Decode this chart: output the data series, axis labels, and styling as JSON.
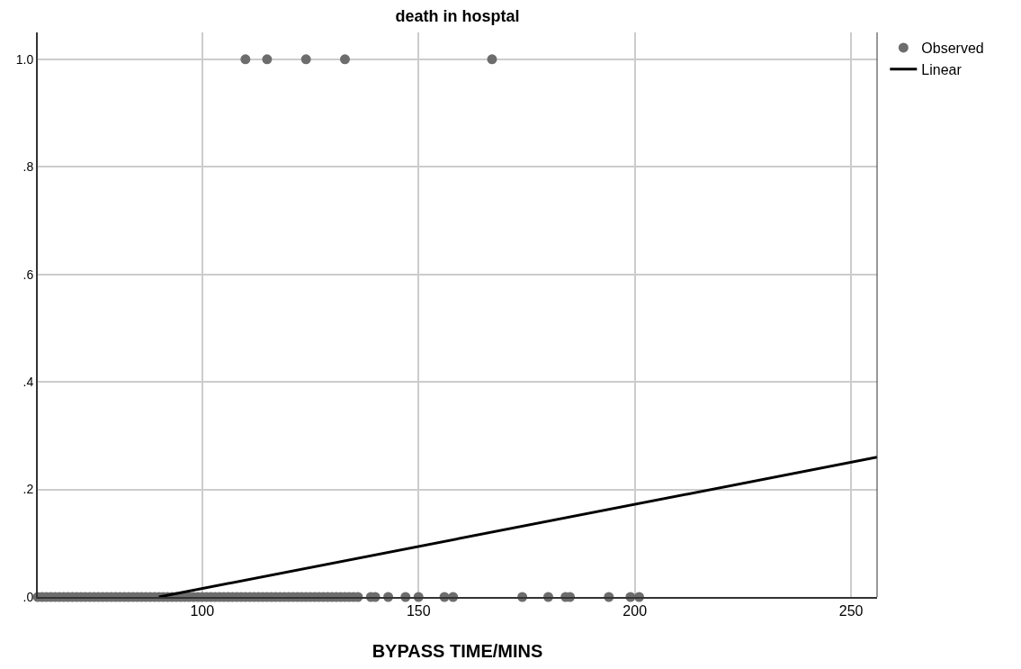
{
  "chart_data": {
    "type": "scatter",
    "title": "death in hosptal",
    "xlabel": "BYPASS TIME/MINS",
    "xlim": [
      62,
      256
    ],
    "xticks": [
      100,
      150,
      200,
      250
    ],
    "ylim": [
      0,
      1.05
    ],
    "yticks": [
      {
        "value": 0,
        "label": ".0"
      },
      {
        "value": 0.2,
        "label": ".2"
      },
      {
        "value": 0.4,
        "label": ".4"
      },
      {
        "value": 0.6,
        "label": ".6"
      },
      {
        "value": 0.8,
        "label": ".8"
      },
      {
        "value": 1,
        "label": "1.0"
      }
    ],
    "grid": true,
    "legend": "top right",
    "marker": "circle",
    "series": [
      {
        "name": "Observed",
        "color": "#6d6d6d",
        "x": [
          62,
          63,
          64,
          65,
          66,
          67,
          68,
          69,
          70,
          71,
          72,
          73,
          74,
          75,
          76,
          77,
          78,
          79,
          80,
          81,
          82,
          83,
          84,
          85,
          86,
          87,
          88,
          89,
          90,
          91,
          92,
          93,
          94,
          95,
          96,
          97,
          98,
          99,
          100,
          101,
          102,
          103,
          104,
          105,
          106,
          107,
          108,
          109,
          110,
          111,
          112,
          113,
          114,
          115,
          116,
          117,
          118,
          119,
          120,
          121,
          122,
          123,
          124,
          125,
          126,
          127,
          128,
          129,
          130,
          131,
          132,
          133,
          134,
          135,
          136,
          139,
          140,
          143,
          147,
          150,
          156,
          158,
          174,
          180,
          184,
          185,
          194,
          199,
          201,
          110,
          115,
          124,
          133,
          167
        ],
        "values": [
          0,
          0,
          0,
          0,
          0,
          0,
          0,
          0,
          0,
          0,
          0,
          0,
          0,
          0,
          0,
          0,
          0,
          0,
          0,
          0,
          0,
          0,
          0,
          0,
          0,
          0,
          0,
          0,
          0,
          0,
          0,
          0,
          0,
          0,
          0,
          0,
          0,
          0,
          0,
          0,
          0,
          0,
          0,
          0,
          0,
          0,
          0,
          0,
          0,
          0,
          0,
          0,
          0,
          0,
          0,
          0,
          0,
          0,
          0,
          0,
          0,
          0,
          0,
          0,
          0,
          0,
          0,
          0,
          0,
          0,
          0,
          0,
          0,
          0,
          0,
          0,
          0,
          0,
          0,
          0,
          0,
          0,
          0,
          0,
          0,
          0,
          0,
          0,
          0,
          1,
          1,
          1,
          1,
          1
        ]
      },
      {
        "name": "Linear",
        "type": "line",
        "color": "#000000",
        "marker": "none",
        "line_style": "solid",
        "x": [
          90,
          256
        ],
        "values": [
          0,
          0.26
        ]
      }
    ]
  }
}
